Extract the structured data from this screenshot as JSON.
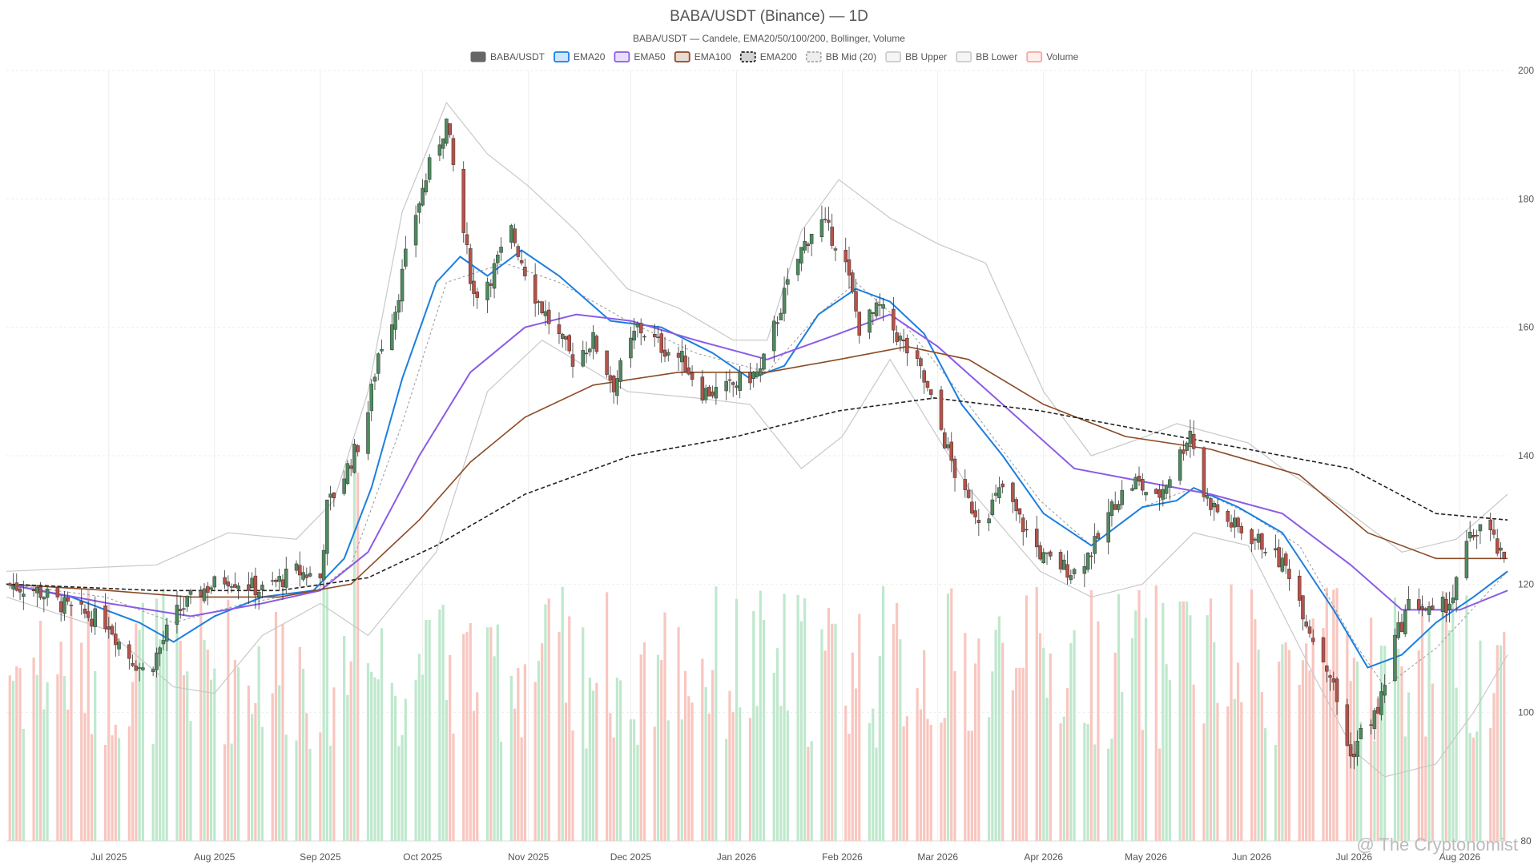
{
  "chart_data": {
    "type": "candlestick",
    "title": "BABA/USDT (Binance) — 1D",
    "subtitle": "BABA/USDT — Candele, EMA20/50/100/200, Bollinger, Volume",
    "legend": [
      {
        "label": "BABA/USDT",
        "color": "#666666",
        "style": "solid-box"
      },
      {
        "label": "EMA20",
        "color": "#1a7fe0",
        "style": "box"
      },
      {
        "label": "EMA50",
        "color": "#8a5ce6",
        "style": "box"
      },
      {
        "label": "EMA100",
        "color": "#8b4a24",
        "style": "box"
      },
      {
        "label": "EMA200",
        "color": "#222222",
        "style": "dashed-box"
      },
      {
        "label": "BB Mid (20)",
        "color": "#aaaaaa",
        "style": "dashed-box"
      },
      {
        "label": "BB Upper",
        "color": "#cccccc",
        "style": "box"
      },
      {
        "label": "BB Lower",
        "color": "#cccccc",
        "style": "box"
      },
      {
        "label": "Volume",
        "color": "#f4a8a0",
        "style": "box"
      }
    ],
    "legend_position": "top-center",
    "y_axis": {
      "position": "right",
      "min": 80,
      "max": 200,
      "ticks": [
        80,
        100,
        120,
        140,
        160,
        180,
        200
      ]
    },
    "x_axis": {
      "start": "2025-06-01",
      "end": "2026-08-15",
      "ticks": [
        {
          "label": "Jul 2025",
          "date": "2025-07-01"
        },
        {
          "label": "Aug 2025",
          "date": "2025-08-01"
        },
        {
          "label": "Sep 2025",
          "date": "2025-09-01"
        },
        {
          "label": "Oct 2025",
          "date": "2025-10-01"
        },
        {
          "label": "Nov 2025",
          "date": "2025-11-01"
        },
        {
          "label": "Dec 2025",
          "date": "2025-12-01"
        },
        {
          "label": "Jan 2026",
          "date": "2026-01-01"
        },
        {
          "label": "Feb 2026",
          "date": "2026-02-01"
        },
        {
          "label": "Mar 2026",
          "date": "2026-03-01"
        },
        {
          "label": "Apr 2026",
          "date": "2026-04-01"
        },
        {
          "label": "May 2026",
          "date": "2026-05-01"
        },
        {
          "label": "Jun 2026",
          "date": "2026-06-01"
        },
        {
          "label": "Jul 2026",
          "date": "2026-07-01"
        },
        {
          "label": "Aug 2026",
          "date": "2026-08-01"
        }
      ]
    },
    "grid": true,
    "close_path": [
      [
        "2025-06-01",
        120
      ],
      [
        "2025-06-10",
        119
      ],
      [
        "2025-06-20",
        116
      ],
      [
        "2025-07-01",
        114
      ],
      [
        "2025-07-05",
        110
      ],
      [
        "2025-07-12",
        106
      ],
      [
        "2025-07-16",
        110
      ],
      [
        "2025-07-20",
        115
      ],
      [
        "2025-07-28",
        119
      ],
      [
        "2025-08-05",
        121
      ],
      [
        "2025-08-15",
        119
      ],
      [
        "2025-08-25",
        122
      ],
      [
        "2025-09-01",
        121
      ],
      [
        "2025-09-03",
        132
      ],
      [
        "2025-09-08",
        137
      ],
      [
        "2025-09-14",
        144
      ],
      [
        "2025-09-18",
        156
      ],
      [
        "2025-09-23",
        163
      ],
      [
        "2025-09-28",
        176
      ],
      [
        "2025-10-03",
        185
      ],
      [
        "2025-10-08",
        192
      ],
      [
        "2025-10-12",
        178
      ],
      [
        "2025-10-16",
        165
      ],
      [
        "2025-10-21",
        168
      ],
      [
        "2025-10-27",
        175
      ],
      [
        "2025-11-02",
        166
      ],
      [
        "2025-11-08",
        160
      ],
      [
        "2025-11-14",
        155
      ],
      [
        "2025-11-20",
        158
      ],
      [
        "2025-11-26",
        151
      ],
      [
        "2025-12-03",
        160
      ],
      [
        "2025-12-10",
        157
      ],
      [
        "2025-12-16",
        155
      ],
      [
        "2025-12-22",
        150
      ],
      [
        "2025-12-28",
        150
      ],
      [
        "2026-01-03",
        152
      ],
      [
        "2026-01-08",
        153
      ],
      [
        "2026-01-15",
        165
      ],
      [
        "2026-01-20",
        172
      ],
      [
        "2026-01-25",
        177
      ],
      [
        "2026-02-01",
        172
      ],
      [
        "2026-02-06",
        160
      ],
      [
        "2026-02-12",
        163
      ],
      [
        "2026-02-18",
        158
      ],
      [
        "2026-02-24",
        153
      ],
      [
        "2026-03-02",
        144
      ],
      [
        "2026-03-08",
        134
      ],
      [
        "2026-03-14",
        130
      ],
      [
        "2026-03-20",
        135
      ],
      [
        "2026-03-26",
        129
      ],
      [
        "2026-04-01",
        124
      ],
      [
        "2026-04-10",
        122
      ],
      [
        "2026-04-16",
        126
      ],
      [
        "2026-04-22",
        133
      ],
      [
        "2026-04-28",
        136
      ],
      [
        "2026-05-04",
        133
      ],
      [
        "2026-05-10",
        139
      ],
      [
        "2026-05-14",
        144
      ],
      [
        "2026-05-18",
        134
      ],
      [
        "2026-05-24",
        130
      ],
      [
        "2026-05-30",
        128
      ],
      [
        "2026-06-05",
        126
      ],
      [
        "2026-06-12",
        122
      ],
      [
        "2026-06-18",
        113
      ],
      [
        "2026-06-24",
        106
      ],
      [
        "2026-06-30",
        93
      ],
      [
        "2026-07-04",
        98
      ],
      [
        "2026-07-08",
        100
      ],
      [
        "2026-07-12",
        110
      ],
      [
        "2026-07-18",
        118
      ],
      [
        "2026-07-24",
        115
      ],
      [
        "2026-07-30",
        118
      ],
      [
        "2026-08-03",
        126
      ],
      [
        "2026-08-08",
        130
      ],
      [
        "2026-08-14",
        123
      ]
    ],
    "ema_series": {
      "EMA20": [
        [
          "2025-06-01",
          120
        ],
        [
          "2025-06-20",
          118
        ],
        [
          "2025-07-10",
          114
        ],
        [
          "2025-07-20",
          111
        ],
        [
          "2025-08-01",
          115
        ],
        [
          "2025-08-15",
          118
        ],
        [
          "2025-08-30",
          119
        ],
        [
          "2025-09-08",
          124
        ],
        [
          "2025-09-16",
          135
        ],
        [
          "2025-09-25",
          152
        ],
        [
          "2025-10-05",
          167
        ],
        [
          "2025-10-12",
          171
        ],
        [
          "2025-10-20",
          168
        ],
        [
          "2025-10-30",
          172
        ],
        [
          "2025-11-10",
          168
        ],
        [
          "2025-11-25",
          161
        ],
        [
          "2025-12-10",
          160
        ],
        [
          "2025-12-25",
          156
        ],
        [
          "2026-01-05",
          152
        ],
        [
          "2026-01-15",
          154
        ],
        [
          "2026-01-25",
          162
        ],
        [
          "2026-02-05",
          166
        ],
        [
          "2026-02-15",
          164
        ],
        [
          "2026-02-25",
          159
        ],
        [
          "2026-03-08",
          148
        ],
        [
          "2026-03-20",
          140
        ],
        [
          "2026-04-01",
          131
        ],
        [
          "2026-04-15",
          126
        ],
        [
          "2026-04-30",
          132
        ],
        [
          "2026-05-10",
          133
        ],
        [
          "2026-05-15",
          135
        ],
        [
          "2026-05-28",
          132
        ],
        [
          "2026-06-10",
          128
        ],
        [
          "2026-06-25",
          116
        ],
        [
          "2026-07-05",
          107
        ],
        [
          "2026-07-15",
          109
        ],
        [
          "2026-07-25",
          114
        ],
        [
          "2026-08-05",
          118
        ],
        [
          "2026-08-15",
          122
        ]
      ],
      "EMA50": [
        [
          "2025-06-01",
          120
        ],
        [
          "2025-07-01",
          117
        ],
        [
          "2025-07-25",
          115
        ],
        [
          "2025-08-15",
          117
        ],
        [
          "2025-09-01",
          119
        ],
        [
          "2025-09-15",
          125
        ],
        [
          "2025-09-30",
          140
        ],
        [
          "2025-10-15",
          153
        ],
        [
          "2025-10-31",
          160
        ],
        [
          "2025-11-15",
          162
        ],
        [
          "2025-12-01",
          161
        ],
        [
          "2025-12-20",
          158
        ],
        [
          "2026-01-10",
          155
        ],
        [
          "2026-01-31",
          159
        ],
        [
          "2026-02-15",
          162
        ],
        [
          "2026-03-01",
          157
        ],
        [
          "2026-03-20",
          148
        ],
        [
          "2026-04-10",
          138
        ],
        [
          "2026-04-30",
          136
        ],
        [
          "2026-05-20",
          134
        ],
        [
          "2026-06-10",
          131
        ],
        [
          "2026-06-30",
          123
        ],
        [
          "2026-07-15",
          116
        ],
        [
          "2026-08-01",
          116
        ],
        [
          "2026-08-15",
          119
        ]
      ],
      "EMA100": [
        [
          "2025-06-01",
          120
        ],
        [
          "2025-07-01",
          119
        ],
        [
          "2025-07-25",
          118
        ],
        [
          "2025-08-20",
          118
        ],
        [
          "2025-09-10",
          120
        ],
        [
          "2025-09-30",
          130
        ],
        [
          "2025-10-15",
          139
        ],
        [
          "2025-10-31",
          146
        ],
        [
          "2025-11-20",
          151
        ],
        [
          "2025-12-15",
          153
        ],
        [
          "2026-01-10",
          153
        ],
        [
          "2026-01-31",
          155
        ],
        [
          "2026-02-20",
          157
        ],
        [
          "2026-03-10",
          155
        ],
        [
          "2026-04-01",
          148
        ],
        [
          "2026-04-25",
          143
        ],
        [
          "2026-05-20",
          141
        ],
        [
          "2026-06-15",
          137
        ],
        [
          "2026-07-05",
          128
        ],
        [
          "2026-07-25",
          124
        ],
        [
          "2026-08-15",
          124
        ]
      ],
      "EMA200": [
        [
          "2025-06-01",
          120
        ],
        [
          "2025-07-15",
          119
        ],
        [
          "2025-08-20",
          119
        ],
        [
          "2025-09-15",
          121
        ],
        [
          "2025-10-05",
          126
        ],
        [
          "2025-10-31",
          134
        ],
        [
          "2025-12-01",
          140
        ],
        [
          "2026-01-01",
          143
        ],
        [
          "2026-01-31",
          147
        ],
        [
          "2026-02-28",
          149
        ],
        [
          "2026-03-31",
          147
        ],
        [
          "2026-04-30",
          144
        ],
        [
          "2026-05-31",
          141
        ],
        [
          "2026-06-30",
          138
        ],
        [
          "2026-07-25",
          131
        ],
        [
          "2026-08-15",
          130
        ]
      ]
    },
    "bollinger": {
      "upper": [
        [
          "2025-06-01",
          122
        ],
        [
          "2025-07-15",
          123
        ],
        [
          "2025-08-05",
          128
        ],
        [
          "2025-08-25",
          127
        ],
        [
          "2025-09-05",
          133
        ],
        [
          "2025-09-15",
          150
        ],
        [
          "2025-09-25",
          178
        ],
        [
          "2025-10-08",
          195
        ],
        [
          "2025-10-20",
          187
        ],
        [
          "2025-11-01",
          182
        ],
        [
          "2025-11-15",
          175
        ],
        [
          "2025-11-30",
          166
        ],
        [
          "2025-12-15",
          163
        ],
        [
          "2025-12-31",
          158
        ],
        [
          "2026-01-10",
          158
        ],
        [
          "2026-01-20",
          175
        ],
        [
          "2026-01-31",
          183
        ],
        [
          "2026-02-15",
          177
        ],
        [
          "2026-03-01",
          173
        ],
        [
          "2026-03-15",
          170
        ],
        [
          "2026-04-01",
          150
        ],
        [
          "2026-04-15",
          140
        ],
        [
          "2026-05-01",
          143
        ],
        [
          "2026-05-10",
          145
        ],
        [
          "2026-05-31",
          142
        ],
        [
          "2026-06-10",
          138
        ],
        [
          "2026-06-25",
          133
        ],
        [
          "2026-07-15",
          125
        ],
        [
          "2026-07-31",
          127
        ],
        [
          "2026-08-15",
          134
        ]
      ],
      "mid": [
        [
          "2025-06-01",
          120
        ],
        [
          "2025-06-30",
          118
        ],
        [
          "2025-07-20",
          114
        ],
        [
          "2025-08-10",
          117
        ],
        [
          "2025-08-31",
          119
        ],
        [
          "2025-09-10",
          123
        ],
        [
          "2025-09-25",
          145
        ],
        [
          "2025-10-08",
          167
        ],
        [
          "2025-10-25",
          170
        ],
        [
          "2025-11-10",
          167
        ],
        [
          "2025-11-30",
          161
        ],
        [
          "2025-12-20",
          156
        ],
        [
          "2026-01-10",
          153
        ],
        [
          "2026-01-25",
          162
        ],
        [
          "2026-02-05",
          167
        ],
        [
          "2026-02-20",
          160
        ],
        [
          "2026-03-10",
          148
        ],
        [
          "2026-03-31",
          133
        ],
        [
          "2026-04-15",
          126
        ],
        [
          "2026-04-30",
          132
        ],
        [
          "2026-05-15",
          135
        ],
        [
          "2026-05-31",
          131
        ],
        [
          "2026-06-15",
          126
        ],
        [
          "2026-07-01",
          111
        ],
        [
          "2026-07-10",
          104
        ],
        [
          "2026-07-25",
          110
        ],
        [
          "2026-08-15",
          122
        ]
      ],
      "lower": [
        [
          "2025-06-01",
          118
        ],
        [
          "2025-06-30",
          113
        ],
        [
          "2025-07-20",
          104
        ],
        [
          "2025-08-01",
          103
        ],
        [
          "2025-08-15",
          112
        ],
        [
          "2025-09-01",
          117
        ],
        [
          "2025-09-15",
          112
        ],
        [
          "2025-10-05",
          125
        ],
        [
          "2025-10-20",
          150
        ],
        [
          "2025-11-05",
          158
        ],
        [
          "2025-11-30",
          150
        ],
        [
          "2025-12-20",
          149
        ],
        [
          "2026-01-05",
          148
        ],
        [
          "2026-01-20",
          138
        ],
        [
          "2026-02-01",
          143
        ],
        [
          "2026-02-15",
          155
        ],
        [
          "2026-03-10",
          135
        ],
        [
          "2026-03-31",
          122
        ],
        [
          "2026-04-15",
          118
        ],
        [
          "2026-04-30",
          120
        ],
        [
          "2026-05-15",
          128
        ],
        [
          "2026-05-31",
          126
        ],
        [
          "2026-06-20",
          105
        ],
        [
          "2026-07-01",
          94
        ],
        [
          "2026-07-10",
          90
        ],
        [
          "2026-07-25",
          92
        ],
        [
          "2026-08-05",
          100
        ],
        [
          "2026-08-15",
          109
        ]
      ]
    },
    "volume": {
      "scale_note": "",
      "spikes": [
        [
          "2025-09-12",
          1.0
        ],
        [
          "2025-10-03",
          0.6
        ],
        [
          "2025-10-20",
          0.58
        ],
        [
          "2025-11-15",
          0.3
        ],
        [
          "2025-12-01",
          0.33
        ],
        [
          "2026-01-10",
          0.6
        ],
        [
          "2026-03-25",
          0.47
        ],
        [
          "2026-05-12",
          0.65
        ],
        [
          "2026-07-10",
          0.53
        ]
      ]
    }
  },
  "watermark": "@ The Cryptonomist",
  "colors": {
    "up": "#4e8a5e",
    "down": "#b5534a",
    "vol_up": "#bfe8cd",
    "vol_down": "#f8c6bf",
    "grid": "#eeeeee"
  }
}
